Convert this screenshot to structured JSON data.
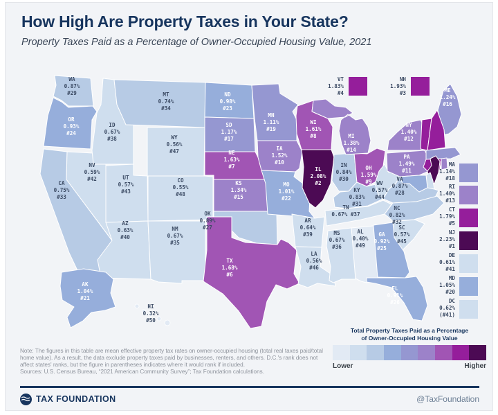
{
  "header": {
    "title": "How High Are Property Taxes in Your State?",
    "subtitle": "Property Taxes Paid as a Percentage of Owner-Occupied Housing Value, 2021"
  },
  "legend": {
    "title_line1": "Total Property Taxes Paid as a Percentage",
    "title_line2": "of Owner-Occupied Housing Value",
    "lower": "Lower",
    "higher": "Higher",
    "ramp": [
      "#e2eaf4",
      "#cfdeee",
      "#b7cbe5",
      "#96aedb",
      "#9597d1",
      "#9c82c9",
      "#a155b4",
      "#951e9b",
      "#4c0a54"
    ]
  },
  "map": {
    "label_dark": "#3b4a63",
    "label_light": "#ffffff",
    "border": "#ffffff",
    "states": [
      {
        "abbr": "AL",
        "value": "0.40%",
        "rank": "#49",
        "tier": 0
      },
      {
        "abbr": "AK",
        "value": "1.04%",
        "rank": "#21",
        "tier": 3
      },
      {
        "abbr": "AZ",
        "value": "0.63%",
        "rank": "#40",
        "tier": 1
      },
      {
        "abbr": "AR",
        "value": "0.64%",
        "rank": "#39",
        "tier": 1
      },
      {
        "abbr": "CA",
        "value": "0.75%",
        "rank": "#33",
        "tier": 2
      },
      {
        "abbr": "CO",
        "value": "0.55%",
        "rank": "#48",
        "tier": 1
      },
      {
        "abbr": "CT",
        "value": "1.79%",
        "rank": "#5",
        "tier": 7
      },
      {
        "abbr": "DE",
        "value": "0.61%",
        "rank": "#41",
        "tier": 1
      },
      {
        "abbr": "DC",
        "value": "0.62%",
        "rank": "(#41)",
        "tier": 1
      },
      {
        "abbr": "FL",
        "value": "0.91%",
        "rank": "#26",
        "tier": 3
      },
      {
        "abbr": "GA",
        "value": "0.92%",
        "rank": "#25",
        "tier": 3
      },
      {
        "abbr": "HI",
        "value": "0.32%",
        "rank": "#50",
        "tier": 0
      },
      {
        "abbr": "ID",
        "value": "0.67%",
        "rank": "#38",
        "tier": 1
      },
      {
        "abbr": "IL",
        "value": "2.08%",
        "rank": "#2",
        "tier": 8
      },
      {
        "abbr": "IN",
        "value": "0.84%",
        "rank": "#30",
        "tier": 2
      },
      {
        "abbr": "IA",
        "value": "1.52%",
        "rank": "#10",
        "tier": 5
      },
      {
        "abbr": "KS",
        "value": "1.34%",
        "rank": "#15",
        "tier": 5
      },
      {
        "abbr": "KY",
        "value": "0.83%",
        "rank": "#31",
        "tier": 2
      },
      {
        "abbr": "LA",
        "value": "0.56%",
        "rank": "#46",
        "tier": 1
      },
      {
        "abbr": "ME",
        "value": "1.24%",
        "rank": "#16",
        "tier": 4
      },
      {
        "abbr": "MD",
        "value": "1.05%",
        "rank": "#20",
        "tier": 3
      },
      {
        "abbr": "MA",
        "value": "1.14%",
        "rank": "#18",
        "tier": 4
      },
      {
        "abbr": "MI",
        "value": "1.38%",
        "rank": "#14",
        "tier": 5
      },
      {
        "abbr": "MN",
        "value": "1.11%",
        "rank": "#19",
        "tier": 4
      },
      {
        "abbr": "MS",
        "value": "0.67%",
        "rank": "#36",
        "tier": 1
      },
      {
        "abbr": "MO",
        "value": "1.01%",
        "rank": "#22",
        "tier": 3
      },
      {
        "abbr": "MT",
        "value": "0.74%",
        "rank": "#34",
        "tier": 2
      },
      {
        "abbr": "NE",
        "value": "1.63%",
        "rank": "#7",
        "tier": 6
      },
      {
        "abbr": "NV",
        "value": "0.59%",
        "rank": "#42",
        "tier": 1
      },
      {
        "abbr": "NH",
        "value": "1.93%",
        "rank": "#3",
        "tier": 7
      },
      {
        "abbr": "NJ",
        "value": "2.23%",
        "rank": "#1",
        "tier": 8
      },
      {
        "abbr": "NM",
        "value": "0.67%",
        "rank": "#35",
        "tier": 1
      },
      {
        "abbr": "NY",
        "value": "1.40%",
        "rank": "#12",
        "tier": 5
      },
      {
        "abbr": "NC",
        "value": "0.82%",
        "rank": "#32",
        "tier": 2
      },
      {
        "abbr": "ND",
        "value": "0.98%",
        "rank": "#23",
        "tier": 3
      },
      {
        "abbr": "OH",
        "value": "1.59%",
        "rank": "#9",
        "tier": 6
      },
      {
        "abbr": "OK",
        "value": "0.89%",
        "rank": "#27",
        "tier": 2
      },
      {
        "abbr": "OR",
        "value": "0.93%",
        "rank": "#24",
        "tier": 3
      },
      {
        "abbr": "PA",
        "value": "1.49%",
        "rank": "#11",
        "tier": 5
      },
      {
        "abbr": "RI",
        "value": "1.40%",
        "rank": "#13",
        "tier": 5
      },
      {
        "abbr": "SC",
        "value": "0.57%",
        "rank": "#45",
        "tier": 1
      },
      {
        "abbr": "SD",
        "value": "1.17%",
        "rank": "#17",
        "tier": 4
      },
      {
        "abbr": "TN",
        "value": "0.67%",
        "rank": "#37",
        "tier": 1
      },
      {
        "abbr": "TX",
        "value": "1.68%",
        "rank": "#6",
        "tier": 6
      },
      {
        "abbr": "UT",
        "value": "0.57%",
        "rank": "#43",
        "tier": 1
      },
      {
        "abbr": "VT",
        "value": "1.83%",
        "rank": "#4",
        "tier": 7
      },
      {
        "abbr": "VA",
        "value": "0.87%",
        "rank": "#28",
        "tier": 2
      },
      {
        "abbr": "WA",
        "value": "0.87%",
        "rank": "#29",
        "tier": 2
      },
      {
        "abbr": "WV",
        "value": "0.57%",
        "rank": "#44",
        "tier": 1
      },
      {
        "abbr": "WI",
        "value": "1.61%",
        "rank": "#8",
        "tier": 6
      },
      {
        "abbr": "WY",
        "value": "0.56%",
        "rank": "#47",
        "tier": 1
      }
    ]
  },
  "notes": {
    "note": "Note: The figures in this table are mean effective property tax rates on owner-occupied housing (total real taxes paid/total home value). As a result, the data exclude property taxes paid by businesses, renters, and others. D.C.'s rank does not affect states' ranks, but the figure in parentheses indicates where it would rank if included.",
    "sources": "Sources: U.S. Census Bureau, “2021 American Community Survey”; Tax Foundation calculations."
  },
  "footer": {
    "brand": "TAX FOUNDATION",
    "handle": "@TaxFoundation"
  },
  "colors": {
    "accent_navy": "#17355e",
    "card_bg": "#f2f4f7"
  }
}
